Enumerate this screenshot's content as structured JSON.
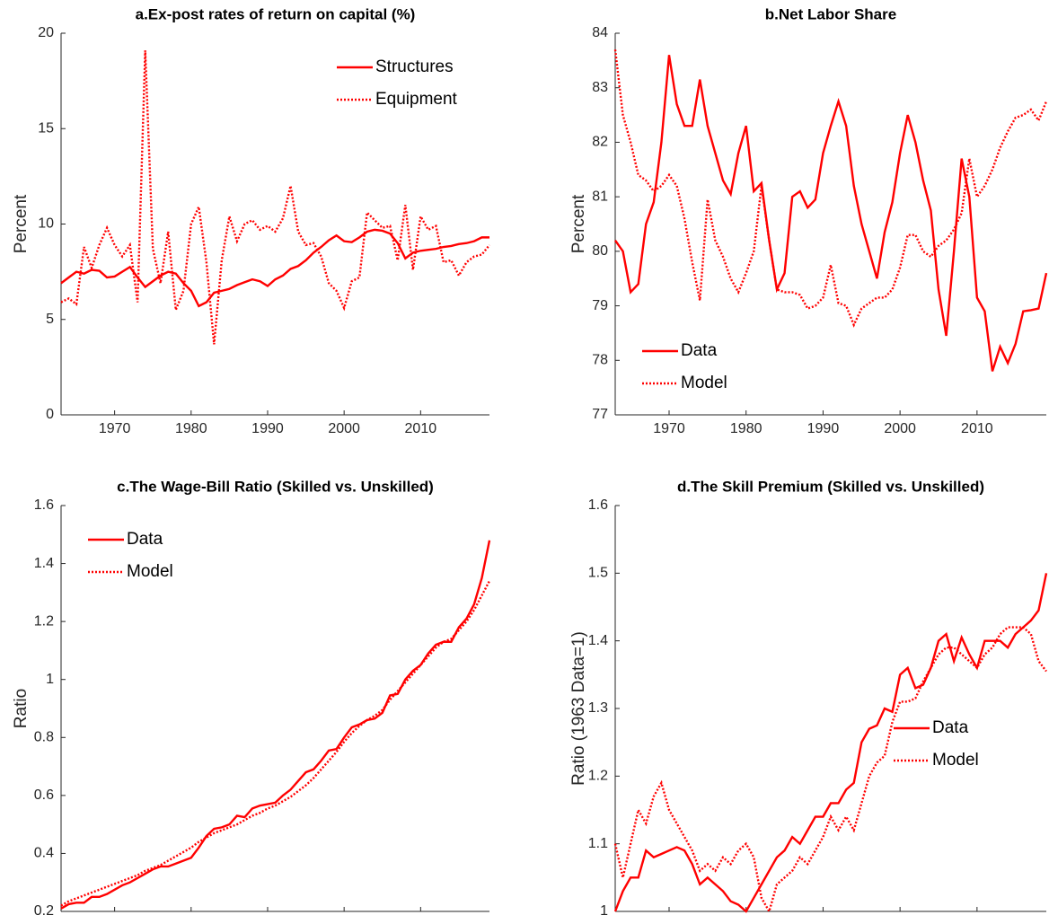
{
  "chart_data": [
    {
      "type": "line",
      "title": "a.Ex-post rates of return on capital (%)",
      "ylabel": "Percent",
      "x": [
        1963,
        1964,
        1965,
        1966,
        1967,
        1968,
        1969,
        1970,
        1971,
        1972,
        1973,
        1974,
        1975,
        1976,
        1977,
        1978,
        1979,
        1980,
        1981,
        1982,
        1983,
        1984,
        1985,
        1986,
        1987,
        1988,
        1989,
        1990,
        1991,
        1992,
        1993,
        1994,
        1995,
        1996,
        1997,
        1998,
        1999,
        2000,
        2001,
        2002,
        2003,
        2004,
        2005,
        2006,
        2007,
        2008,
        2009,
        2010,
        2011,
        2012,
        2013,
        2014,
        2015,
        2016,
        2017,
        2018,
        2019
      ],
      "series": [
        {
          "name": "Structures",
          "color": "#ff0000",
          "style": "solid",
          "values": [
            6.9,
            7.2,
            7.5,
            7.4,
            7.6,
            7.55,
            7.2,
            7.25,
            7.5,
            7.75,
            7.2,
            6.7,
            7.0,
            7.3,
            7.5,
            7.4,
            6.9,
            6.5,
            5.7,
            5.9,
            6.4,
            6.5,
            6.6,
            6.8,
            6.95,
            7.1,
            7.0,
            6.75,
            7.1,
            7.3,
            7.65,
            7.8,
            8.1,
            8.5,
            8.8,
            9.15,
            9.4,
            9.1,
            9.05,
            9.3,
            9.6,
            9.7,
            9.65,
            9.5,
            9.0,
            8.2,
            8.5,
            8.6,
            8.65,
            8.7,
            8.8,
            8.85,
            8.95,
            9.0,
            9.1,
            9.3,
            9.3
          ]
        },
        {
          "name": "Equipment",
          "color": "#ff0000",
          "style": "dotted",
          "values": [
            5.9,
            6.1,
            5.8,
            8.8,
            7.7,
            8.9,
            9.8,
            8.9,
            8.3,
            8.9,
            5.9,
            19.1,
            8.7,
            6.9,
            9.6,
            5.5,
            6.5,
            10.0,
            10.9,
            8.0,
            3.7,
            8.1,
            10.4,
            9.1,
            10.0,
            10.2,
            9.7,
            9.9,
            9.6,
            10.3,
            12.0,
            9.6,
            8.9,
            9.0,
            8.3,
            6.9,
            6.5,
            5.6,
            7.0,
            7.2,
            10.6,
            10.2,
            9.8,
            9.9,
            8.1,
            11.0,
            7.6,
            10.4,
            9.7,
            9.9,
            8.0,
            8.1,
            7.3,
            8.0,
            8.3,
            8.4,
            8.9
          ]
        }
      ],
      "xlim": [
        1963,
        2019
      ],
      "ylim": [
        0,
        20
      ],
      "xticks": [
        1970,
        1980,
        1990,
        2000,
        2010
      ],
      "yticks": [
        0,
        5,
        10,
        15,
        20
      ],
      "legend": "upper right"
    },
    {
      "type": "line",
      "title": "b.Net Labor Share",
      "ylabel": "Percent",
      "x": [
        1963,
        1964,
        1965,
        1966,
        1967,
        1968,
        1969,
        1970,
        1971,
        1972,
        1973,
        1974,
        1975,
        1976,
        1977,
        1978,
        1979,
        1980,
        1981,
        1982,
        1983,
        1984,
        1985,
        1986,
        1987,
        1988,
        1989,
        1990,
        1991,
        1992,
        1993,
        1994,
        1995,
        1996,
        1997,
        1998,
        1999,
        2000,
        2001,
        2002,
        2003,
        2004,
        2005,
        2006,
        2007,
        2008,
        2009,
        2010,
        2011,
        2012,
        2013,
        2014,
        2015,
        2016,
        2017,
        2018,
        2019
      ],
      "series": [
        {
          "name": "Data",
          "color": "#ff0000",
          "style": "solid",
          "values": [
            80.2,
            80.0,
            79.25,
            79.4,
            80.5,
            80.9,
            82.0,
            83.6,
            82.7,
            82.3,
            82.3,
            83.15,
            82.3,
            81.8,
            81.3,
            81.05,
            81.8,
            82.3,
            81.1,
            81.25,
            80.2,
            79.3,
            79.6,
            81.0,
            81.1,
            80.8,
            80.95,
            81.8,
            82.3,
            82.75,
            82.3,
            81.2,
            80.5,
            80.0,
            79.5,
            80.35,
            80.9,
            81.8,
            82.5,
            82.0,
            81.3,
            80.75,
            79.3,
            78.45,
            80.0,
            81.7,
            81.0,
            79.15,
            78.9,
            77.8,
            78.25,
            77.95,
            78.3,
            78.9,
            78.92,
            78.95,
            79.6
          ]
        },
        {
          "name": "Model",
          "color": "#ff0000",
          "style": "dotted",
          "values": [
            83.7,
            82.5,
            82.0,
            81.4,
            81.3,
            81.1,
            81.2,
            81.4,
            81.2,
            80.6,
            79.8,
            79.1,
            80.95,
            80.2,
            79.9,
            79.5,
            79.25,
            79.6,
            80.0,
            81.2,
            80.2,
            79.3,
            79.25,
            79.25,
            79.2,
            78.95,
            79.0,
            79.15,
            79.75,
            79.05,
            79.0,
            78.65,
            78.95,
            79.05,
            79.15,
            79.15,
            79.3,
            79.7,
            80.3,
            80.3,
            80.0,
            79.9,
            80.1,
            80.2,
            80.4,
            80.7,
            81.7,
            81.0,
            81.2,
            81.5,
            81.9,
            82.2,
            82.45,
            82.5,
            82.6,
            82.4,
            82.75
          ]
        }
      ],
      "xlim": [
        1963,
        2019
      ],
      "ylim": [
        77,
        84
      ],
      "xticks": [
        1970,
        1980,
        1990,
        2000,
        2010
      ],
      "yticks": [
        77,
        78,
        79,
        80,
        81,
        82,
        83,
        84
      ],
      "legend": "lower left"
    },
    {
      "type": "line",
      "title": "c.The Wage-Bill Ratio (Skilled vs. Unskilled)",
      "ylabel": "Ratio",
      "x": [
        1963,
        1964,
        1965,
        1966,
        1967,
        1968,
        1969,
        1970,
        1971,
        1972,
        1973,
        1974,
        1975,
        1976,
        1977,
        1978,
        1979,
        1980,
        1981,
        1982,
        1983,
        1984,
        1985,
        1986,
        1987,
        1988,
        1989,
        1990,
        1991,
        1992,
        1993,
        1994,
        1995,
        1996,
        1997,
        1998,
        1999,
        2000,
        2001,
        2002,
        2003,
        2004,
        2005,
        2006,
        2007,
        2008,
        2009,
        2010,
        2011,
        2012,
        2013,
        2014,
        2015,
        2016,
        2017,
        2018,
        2019
      ],
      "series": [
        {
          "name": "Data",
          "color": "#ff0000",
          "style": "solid",
          "values": [
            0.21,
            0.225,
            0.23,
            0.23,
            0.25,
            0.25,
            0.26,
            0.275,
            0.29,
            0.3,
            0.315,
            0.33,
            0.345,
            0.355,
            0.355,
            0.365,
            0.375,
            0.385,
            0.42,
            0.46,
            0.485,
            0.49,
            0.5,
            0.53,
            0.525,
            0.555,
            0.565,
            0.57,
            0.575,
            0.6,
            0.62,
            0.65,
            0.68,
            0.69,
            0.72,
            0.755,
            0.76,
            0.8,
            0.835,
            0.845,
            0.86,
            0.865,
            0.885,
            0.945,
            0.95,
            1.0,
            1.03,
            1.05,
            1.09,
            1.12,
            1.13,
            1.13,
            1.18,
            1.21,
            1.26,
            1.35,
            1.48
          ]
        },
        {
          "name": "Model",
          "color": "#ff0000",
          "style": "dotted",
          "values": [
            0.22,
            0.235,
            0.245,
            0.255,
            0.265,
            0.275,
            0.285,
            0.295,
            0.305,
            0.315,
            0.325,
            0.34,
            0.35,
            0.36,
            0.375,
            0.39,
            0.405,
            0.42,
            0.44,
            0.455,
            0.47,
            0.48,
            0.49,
            0.5,
            0.515,
            0.53,
            0.54,
            0.555,
            0.565,
            0.58,
            0.595,
            0.615,
            0.635,
            0.66,
            0.69,
            0.72,
            0.75,
            0.785,
            0.815,
            0.84,
            0.86,
            0.875,
            0.895,
            0.93,
            0.96,
            0.99,
            1.02,
            1.05,
            1.08,
            1.11,
            1.13,
            1.14,
            1.17,
            1.2,
            1.24,
            1.29,
            1.34
          ]
        }
      ],
      "xlim": [
        1963,
        2019
      ],
      "ylim": [
        0.2,
        1.6
      ],
      "xticks": [
        1970,
        1980,
        1990,
        2000,
        2010
      ],
      "yticks": [
        0.2,
        0.4,
        0.6,
        0.8,
        1,
        1.2,
        1.4,
        1.6
      ],
      "legend": "upper left"
    },
    {
      "type": "line",
      "title": "d.The Skill Premium (Skilled vs. Unskilled)",
      "ylabel": "Ratio (1963 Data=1)",
      "x": [
        1963,
        1964,
        1965,
        1966,
        1967,
        1968,
        1969,
        1970,
        1971,
        1972,
        1973,
        1974,
        1975,
        1976,
        1977,
        1978,
        1979,
        1980,
        1981,
        1982,
        1983,
        1984,
        1985,
        1986,
        1987,
        1988,
        1989,
        1990,
        1991,
        1992,
        1993,
        1994,
        1995,
        1996,
        1997,
        1998,
        1999,
        2000,
        2001,
        2002,
        2003,
        2004,
        2005,
        2006,
        2007,
        2008,
        2009,
        2010,
        2011,
        2012,
        2013,
        2014,
        2015,
        2016,
        2017,
        2018,
        2019
      ],
      "series": [
        {
          "name": "Data",
          "color": "#ff0000",
          "style": "solid",
          "values": [
            1.0,
            1.03,
            1.05,
            1.05,
            1.09,
            1.08,
            1.085,
            1.09,
            1.095,
            1.09,
            1.07,
            1.04,
            1.05,
            1.04,
            1.03,
            1.015,
            1.01,
            1.0,
            1.02,
            1.04,
            1.06,
            1.08,
            1.09,
            1.11,
            1.1,
            1.12,
            1.14,
            1.14,
            1.16,
            1.16,
            1.18,
            1.19,
            1.25,
            1.27,
            1.275,
            1.3,
            1.295,
            1.35,
            1.36,
            1.33,
            1.335,
            1.36,
            1.4,
            1.41,
            1.37,
            1.405,
            1.38,
            1.36,
            1.4,
            1.4,
            1.4,
            1.39,
            1.41,
            1.42,
            1.43,
            1.445,
            1.5
          ]
        },
        {
          "name": "Model",
          "color": "#ff0000",
          "style": "dotted",
          "values": [
            1.1,
            1.05,
            1.1,
            1.15,
            1.13,
            1.17,
            1.19,
            1.15,
            1.13,
            1.11,
            1.09,
            1.06,
            1.07,
            1.06,
            1.08,
            1.07,
            1.09,
            1.1,
            1.08,
            1.02,
            1.0,
            1.04,
            1.05,
            1.06,
            1.08,
            1.07,
            1.09,
            1.11,
            1.14,
            1.12,
            1.14,
            1.12,
            1.16,
            1.2,
            1.22,
            1.23,
            1.28,
            1.31,
            1.31,
            1.315,
            1.34,
            1.36,
            1.38,
            1.39,
            1.39,
            1.38,
            1.37,
            1.36,
            1.38,
            1.39,
            1.41,
            1.42,
            1.42,
            1.42,
            1.41,
            1.37,
            1.355
          ]
        }
      ],
      "xlim": [
        1963,
        2019
      ],
      "ylim": [
        1,
        1.6
      ],
      "xticks": [
        1970,
        1980,
        1990,
        2000,
        2010
      ],
      "yticks": [
        1,
        1.1,
        1.2,
        1.3,
        1.4,
        1.5,
        1.6
      ],
      "legend": "center right"
    }
  ]
}
